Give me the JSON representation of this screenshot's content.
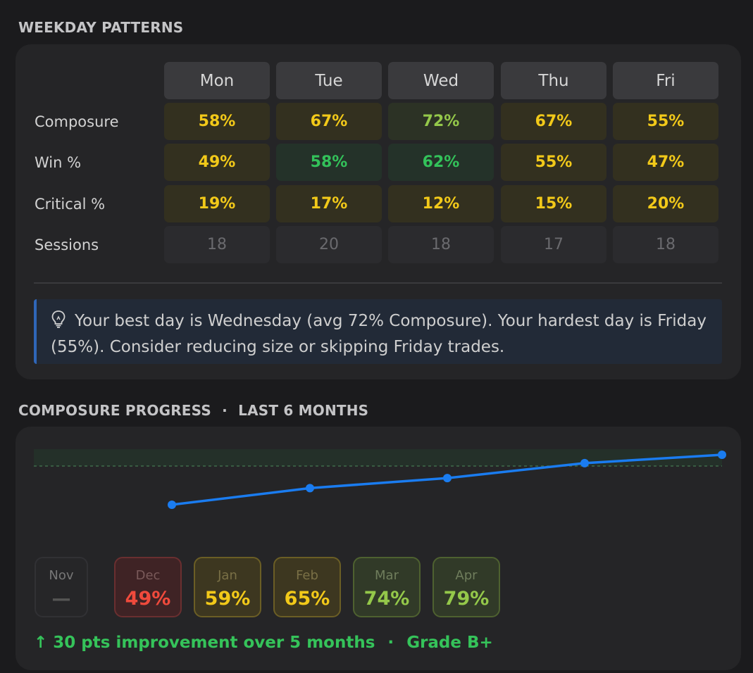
{
  "weekday": {
    "title": "WEEKDAY PATTERNS",
    "days": [
      "Mon",
      "Tue",
      "Wed",
      "Thu",
      "Fri"
    ],
    "rows": [
      {
        "label": "Composure",
        "values": [
          "58%",
          "67%",
          "72%",
          "67%",
          "55%"
        ],
        "tones": [
          "yellow",
          "yellow",
          "lime",
          "yellow",
          "yellow"
        ]
      },
      {
        "label": "Win %",
        "values": [
          "49%",
          "58%",
          "62%",
          "55%",
          "47%"
        ],
        "tones": [
          "yellow",
          "green",
          "green",
          "yellow",
          "yellow"
        ]
      },
      {
        "label": "Critical %",
        "values": [
          "19%",
          "17%",
          "12%",
          "15%",
          "20%"
        ],
        "tones": [
          "yellow",
          "yellow",
          "yellow",
          "yellow",
          "yellow"
        ]
      },
      {
        "label": "Sessions",
        "values": [
          "18",
          "20",
          "18",
          "17",
          "18"
        ],
        "tones": [
          "muted",
          "muted",
          "muted",
          "muted",
          "muted"
        ]
      }
    ],
    "insight_icon": "lightbulb-icon",
    "insight": "Your best day is Wednesday (avg 72% Composure). Your hardest day is Friday (55%). Consider reducing size or skipping Friday trades."
  },
  "progress": {
    "title": "COMPOSURE PROGRESS",
    "separator": "·",
    "subtitle": "LAST 6 MONTHS",
    "months": [
      {
        "label": "Nov",
        "value": "—",
        "tone": "none"
      },
      {
        "label": "Dec",
        "value": "49%",
        "tone": "red"
      },
      {
        "label": "Jan",
        "value": "59%",
        "tone": "yellow"
      },
      {
        "label": "Feb",
        "value": "65%",
        "tone": "yellow"
      },
      {
        "label": "Mar",
        "value": "74%",
        "tone": "lime"
      },
      {
        "label": "Apr",
        "value": "79%",
        "tone": "lime"
      }
    ],
    "summary_icon": "arrow-up-icon",
    "summary_arrow": "↑",
    "summary": "30 pts improvement over 5 months",
    "summary_separator": "·",
    "grade": "Grade B+"
  },
  "chart_data": {
    "type": "line",
    "x": [
      "Dec",
      "Jan",
      "Feb",
      "Mar",
      "Apr"
    ],
    "series": [
      {
        "values": [
          49,
          59,
          65,
          74,
          79
        ]
      }
    ],
    "target_band": [
      76,
      86
    ],
    "ylim": [
      40,
      86
    ],
    "line_color": "#1a7cf0"
  },
  "colors": {
    "yellow": "#f2c919",
    "lime": "#94c84a",
    "green": "#33c25a",
    "red": "#f04a3c",
    "accent_blue": "#1a7cf0"
  }
}
